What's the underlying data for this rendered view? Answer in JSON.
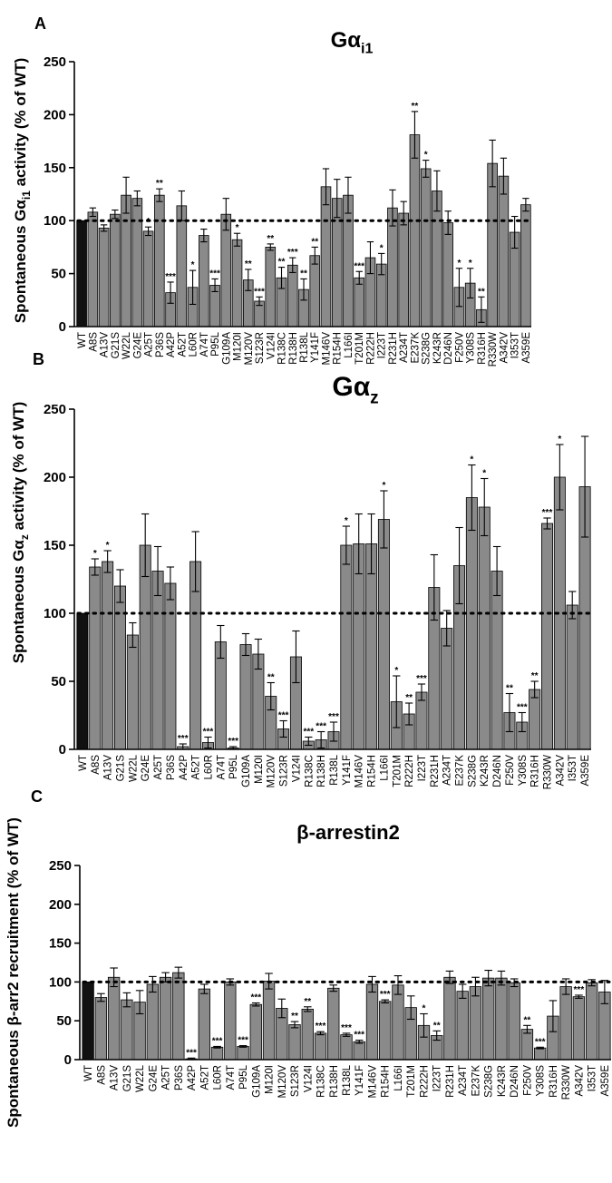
{
  "panels": [
    {
      "letter": "A",
      "title": "Gα",
      "title_sub": "i1",
      "ylabel_pre": "Spontaneous Gα",
      "ylabel_sub": "i1",
      "ylabel_post": " activity (% of WT)",
      "chart_data": {
        "type": "bar",
        "categories": [
          "WT",
          "A8S",
          "A13V",
          "G21S",
          "W22L",
          "G24E",
          "A25T",
          "P36S",
          "A42P",
          "A52T",
          "L60R",
          "A74T",
          "P95L",
          "G109A",
          "M120I",
          "M120V",
          "S123R",
          "V124I",
          "R138C",
          "R138H",
          "R138L",
          "Y141F",
          "M146V",
          "R154H",
          "L166I",
          "T201M",
          "R222H",
          "I223T",
          "R231H",
          "A234T",
          "E237K",
          "S238G",
          "K243R",
          "D246N",
          "F250V",
          "Y308S",
          "R316H",
          "R330W",
          "A342V",
          "I353T",
          "A359E"
        ],
        "values": [
          100,
          108,
          93,
          106,
          124,
          121,
          90,
          124,
          32,
          114,
          37,
          86,
          39,
          106,
          82,
          44,
          24,
          75,
          46,
          58,
          35,
          67,
          132,
          121,
          124,
          46,
          65,
          59,
          112,
          107,
          181,
          149,
          128,
          98,
          37,
          41,
          16,
          154,
          142,
          89,
          115
        ],
        "errors": [
          0,
          4,
          3,
          4,
          17,
          7,
          4,
          6,
          10,
          14,
          16,
          6,
          6,
          15,
          6,
          10,
          4,
          3,
          10,
          7,
          10,
          8,
          17,
          18,
          17,
          6,
          15,
          10,
          17,
          11,
          22,
          8,
          19,
          11,
          18,
          14,
          12,
          22,
          17,
          15,
          6
        ],
        "significance": [
          "",
          "",
          "",
          "",
          "",
          "",
          "*",
          "**",
          "***",
          "",
          "*",
          "",
          "***",
          "",
          "*",
          "**",
          "***",
          "**",
          "**",
          "***",
          "**",
          "**",
          "",
          "",
          "",
          "***",
          "",
          "*",
          "",
          "",
          "**",
          "*",
          "",
          "",
          "*",
          "*",
          "**",
          "",
          "",
          "",
          ""
        ],
        "ylim": [
          0,
          250
        ],
        "yticks": [
          0,
          50,
          100,
          150,
          200,
          250
        ],
        "reference_line": 100
      }
    },
    {
      "letter": "B",
      "title": "Gα",
      "title_sub": "z",
      "ylabel_pre": "Spontaneous Gα",
      "ylabel_sub": "z",
      "ylabel_post": " activity (% of WT)",
      "chart_data": {
        "type": "bar",
        "categories": [
          "WT",
          "A8S",
          "A13V",
          "G21S",
          "W22L",
          "G24E",
          "A25T",
          "P36S",
          "A42P",
          "A52T",
          "L60R",
          "A74T",
          "P95L",
          "G109A",
          "M120I",
          "M120V",
          "S123R",
          "V124I",
          "R138C",
          "R138H",
          "R138L",
          "Y141F",
          "M146V",
          "R154H",
          "L166I",
          "T201M",
          "R222H",
          "I223T",
          "R231H",
          "A234T",
          "E237K",
          "S238G",
          "K243R",
          "D246N",
          "F250V",
          "Y308S",
          "R316H",
          "R330W",
          "A342V",
          "I353T",
          "A359E"
        ],
        "values": [
          100,
          134,
          138,
          120,
          84,
          150,
          131,
          122,
          2,
          138,
          5,
          79,
          1,
          77,
          70,
          39,
          15,
          68,
          6,
          7,
          13,
          150,
          151,
          151,
          169,
          35,
          26,
          42,
          119,
          89,
          135,
          185,
          178,
          131,
          27,
          20,
          44,
          166,
          200,
          106,
          193
        ],
        "errors": [
          0,
          6,
          8,
          12,
          9,
          23,
          18,
          12,
          2,
          22,
          4,
          12,
          1,
          8,
          11,
          10,
          6,
          19,
          3,
          6,
          7,
          14,
          22,
          22,
          21,
          19,
          8,
          6,
          24,
          13,
          28,
          24,
          21,
          18,
          14,
          7,
          6,
          4,
          24,
          10,
          37
        ],
        "significance": [
          "",
          "*",
          "*",
          "",
          "",
          "",
          "",
          "",
          "***",
          "",
          "***",
          "",
          "***",
          "",
          "",
          "**",
          "***",
          "",
          "***",
          "***",
          "***",
          "*",
          "",
          "",
          "*",
          "*",
          "**",
          "***",
          "",
          "",
          "",
          "*",
          "*",
          "",
          "**",
          "***",
          "**",
          "***",
          "*",
          "",
          ""
        ],
        "ylim": [
          0,
          250
        ],
        "yticks": [
          0,
          50,
          100,
          150,
          200,
          250
        ],
        "reference_line": 100
      }
    },
    {
      "letter": "C",
      "title": "β-arrestin2",
      "title_sub": "",
      "ylabel_pre": "Spontaneous β-arr2 recruitment (% of WT)",
      "ylabel_sub": "",
      "ylabel_post": "",
      "chart_data": {
        "type": "bar",
        "categories": [
          "WT",
          "A8S",
          "A13V",
          "G21S",
          "W22L",
          "G24E",
          "A25T",
          "P36S",
          "A42P",
          "A52T",
          "L60R",
          "A74T",
          "P95L",
          "G109A",
          "M120I",
          "M120V",
          "S123R",
          "V124I",
          "R138C",
          "R138H",
          "R138L",
          "Y141F",
          "M146V",
          "R154H",
          "L166I",
          "T201M",
          "R222H",
          "I223T",
          "R231H",
          "A234T",
          "E237K",
          "S238G",
          "K243R",
          "D246N",
          "F250V",
          "Y308S",
          "R316H",
          "R330W",
          "A342V",
          "I353T",
          "A359E"
        ],
        "values": [
          100,
          80,
          106,
          77,
          74,
          97,
          106,
          112,
          1,
          91,
          16,
          100,
          17,
          71,
          101,
          66,
          45,
          65,
          34,
          92,
          32,
          23,
          97,
          75,
          96,
          67,
          44,
          31,
          106,
          88,
          94,
          105,
          105,
          99,
          39,
          15,
          56,
          94,
          81,
          99,
          87
        ],
        "errors": [
          0,
          5,
          12,
          9,
          15,
          10,
          6,
          7,
          1,
          6,
          1,
          4,
          1,
          2,
          10,
          12,
          4,
          3,
          2,
          4,
          2,
          2,
          10,
          2,
          12,
          15,
          15,
          6,
          8,
          9,
          12,
          10,
          9,
          5,
          5,
          1,
          20,
          10,
          2,
          4,
          15
        ],
        "significance": [
          "",
          "",
          "",
          "",
          "",
          "",
          "",
          "",
          "***",
          "",
          "***",
          "",
          "***",
          "***",
          "",
          "",
          "**",
          "**",
          "***",
          "",
          "***",
          "***",
          "",
          "***",
          "",
          "",
          "*",
          "**",
          "",
          "",
          "",
          "",
          "",
          "",
          "**",
          "***",
          "",
          "",
          "***",
          "",
          ""
        ],
        "ylim": [
          0,
          250
        ],
        "yticks": [
          0,
          50,
          100,
          150,
          200,
          250
        ],
        "reference_line": 100
      }
    }
  ]
}
